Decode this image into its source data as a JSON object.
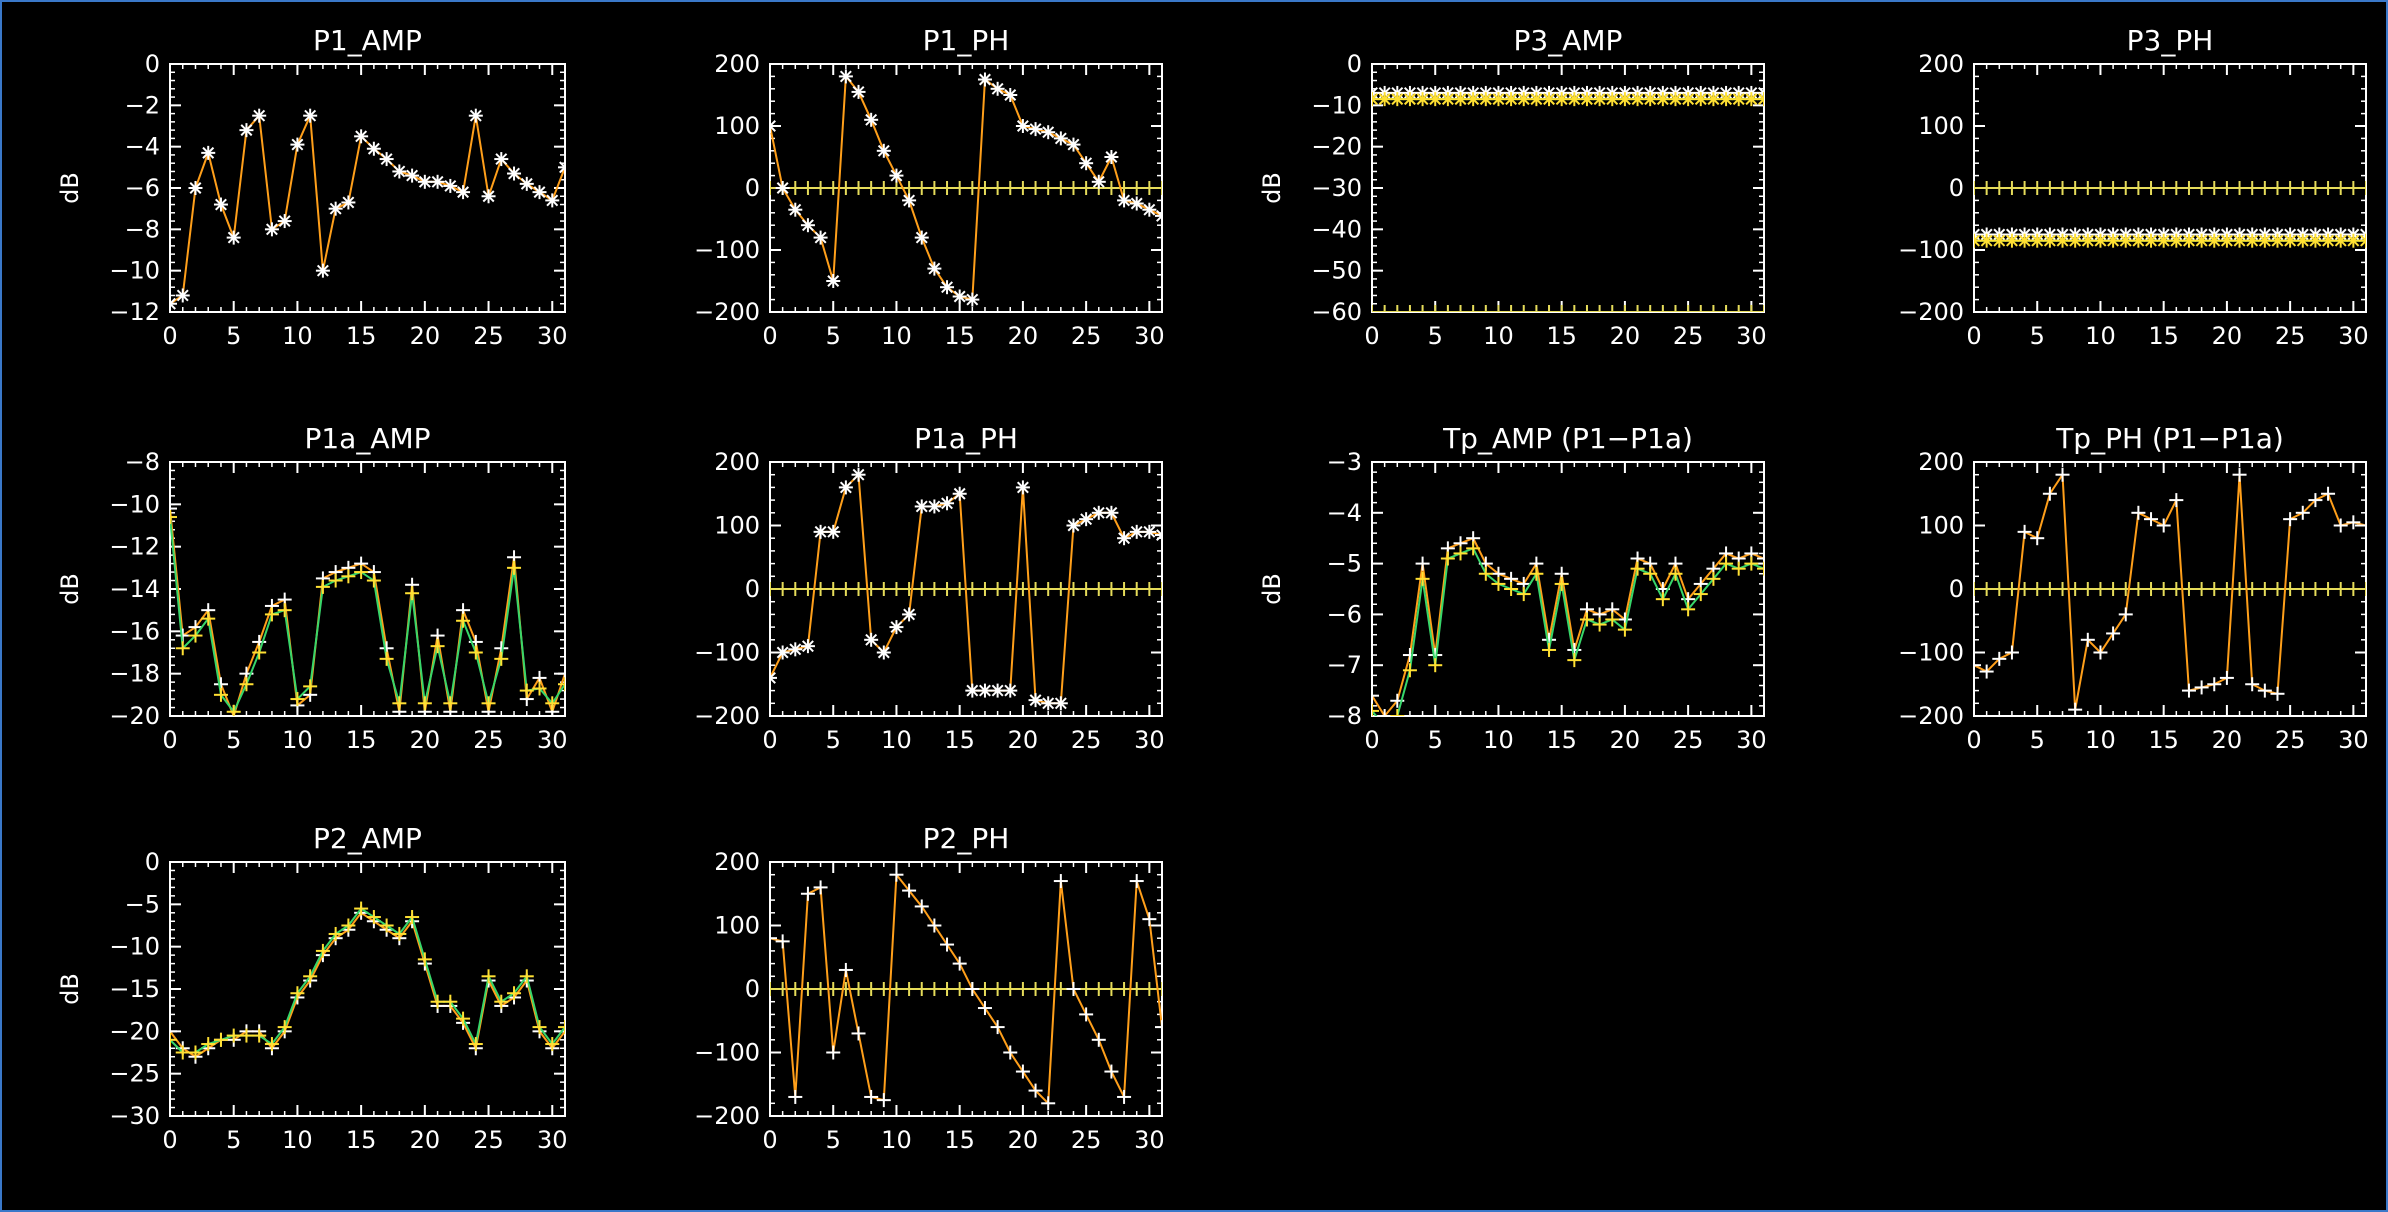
{
  "colors": {
    "background": "#000000",
    "axes": "#ffffff",
    "window_border": "#3a78c9",
    "zero_line_marker": "#e6dc5a",
    "series_palette": [
      "#ff3b30",
      "#ff9f1a",
      "#ffe033",
      "#37d66a",
      "#1ec8e8",
      "#2f4bff",
      "#7a22c9",
      "#ffffff"
    ]
  },
  "chart_data": [
    {
      "id": "p1_amp",
      "type": "line",
      "title": "P1_AMP",
      "xlabel": "",
      "ylabel": "dB",
      "xlim": [
        0,
        31
      ],
      "ylim": [
        -12,
        0
      ],
      "xticks": [
        0,
        5,
        10,
        15,
        20,
        25,
        30
      ],
      "yticks": [
        0,
        -2,
        -4,
        -6,
        -8,
        -10,
        -12
      ],
      "zero_line": false,
      "marker": "asterisk",
      "x": [
        0,
        1,
        2,
        3,
        4,
        5,
        6,
        7,
        8,
        9,
        10,
        11,
        12,
        13,
        14,
        15,
        16,
        17,
        18,
        19,
        20,
        21,
        22,
        23,
        24,
        25,
        26,
        27,
        28,
        29,
        30,
        31
      ],
      "series": [
        {
          "values": [
            -11.6,
            -11.2,
            -6.0,
            -4.3,
            -6.8,
            -8.4,
            -3.2,
            -2.5,
            -8.0,
            -7.6,
            -3.9,
            -2.5,
            -10.0,
            -7.0,
            -6.7,
            -3.5,
            -4.1,
            -4.6,
            -5.2,
            -5.4,
            -5.7,
            -5.7,
            -5.9,
            -6.2,
            -2.5,
            -6.4,
            -4.6,
            -5.3,
            -5.8,
            -6.2,
            -6.6,
            -5.0
          ]
        }
      ]
    },
    {
      "id": "p1_ph",
      "type": "line",
      "title": "P1_PH",
      "xlabel": "",
      "ylabel": "",
      "xlim": [
        0,
        31
      ],
      "ylim": [
        -200,
        200
      ],
      "xticks": [
        0,
        5,
        10,
        15,
        20,
        25,
        30
      ],
      "yticks": [
        200,
        100,
        0,
        -100,
        -200
      ],
      "zero_line": true,
      "marker": "asterisk",
      "x": [
        0,
        1,
        2,
        3,
        4,
        5,
        6,
        7,
        8,
        9,
        10,
        11,
        12,
        13,
        14,
        15,
        16,
        17,
        18,
        19,
        20,
        21,
        22,
        23,
        24,
        25,
        26,
        27,
        28,
        29,
        30,
        31
      ],
      "series": [
        {
          "values": [
            100,
            0,
            -35,
            -60,
            -80,
            -150,
            180,
            155,
            110,
            60,
            20,
            -20,
            -80,
            -130,
            -160,
            -175,
            -180,
            175,
            160,
            150,
            100,
            95,
            90,
            80,
            70,
            40,
            10,
            50,
            -20,
            -25,
            -35,
            -45
          ]
        }
      ]
    },
    {
      "id": "p3_amp",
      "type": "line",
      "title": "P3_AMP",
      "xlabel": "",
      "ylabel": "dB",
      "xlim": [
        0,
        31
      ],
      "ylim": [
        -60,
        0
      ],
      "xticks": [
        0,
        5,
        10,
        15,
        20,
        25,
        30
      ],
      "yticks": [
        0,
        -10,
        -20,
        -30,
        -40,
        -50,
        -60
      ],
      "zero_line": false,
      "zero_line_value": -60,
      "marker": "asterisk",
      "x": [
        0,
        1,
        2,
        3,
        4,
        5,
        6,
        7,
        8,
        9,
        10,
        11,
        12,
        13,
        14,
        15,
        16,
        17,
        18,
        19,
        20,
        21,
        22,
        23,
        24,
        25,
        26,
        27,
        28,
        29,
        30,
        31
      ],
      "series": [
        {
          "values": [
            -7,
            -7,
            -7,
            -7,
            -7,
            -7,
            -7,
            -7,
            -7,
            -7,
            -7,
            -7,
            -7,
            -7,
            -7,
            -7,
            -7,
            -7,
            -7,
            -7,
            -7,
            -7,
            -7,
            -7,
            -7,
            -7,
            -7,
            -7,
            -7,
            -7,
            -7,
            -7
          ]
        },
        {
          "values": [
            -8.5,
            -8.5,
            -8.5,
            -8.5,
            -8.5,
            -8.5,
            -8.5,
            -8.5,
            -8.5,
            -8.5,
            -8.5,
            -8.5,
            -8.5,
            -8.5,
            -8.5,
            -8.5,
            -8.5,
            -8.5,
            -8.5,
            -8.5,
            -8.5,
            -8.5,
            -8.5,
            -8.5,
            -8.5,
            -8.5,
            -8.5,
            -8.5,
            -8.5,
            -8.5,
            -8.5,
            -8.5
          ]
        }
      ]
    },
    {
      "id": "p3_ph",
      "type": "line",
      "title": "P3_PH",
      "xlabel": "",
      "ylabel": "",
      "xlim": [
        0,
        31
      ],
      "ylim": [
        -200,
        200
      ],
      "xticks": [
        0,
        5,
        10,
        15,
        20,
        25,
        30
      ],
      "yticks": [
        200,
        100,
        0,
        -100,
        -200
      ],
      "zero_line": true,
      "marker": "asterisk",
      "x": [
        0,
        1,
        2,
        3,
        4,
        5,
        6,
        7,
        8,
        9,
        10,
        11,
        12,
        13,
        14,
        15,
        16,
        17,
        18,
        19,
        20,
        21,
        22,
        23,
        24,
        25,
        26,
        27,
        28,
        29,
        30,
        31
      ],
      "series": [
        {
          "values": [
            -75,
            -75,
            -75,
            -75,
            -75,
            -75,
            -75,
            -75,
            -75,
            -75,
            -75,
            -75,
            -75,
            -75,
            -75,
            -75,
            -75,
            -75,
            -75,
            -75,
            -75,
            -75,
            -75,
            -75,
            -75,
            -75,
            -75,
            -75,
            -75,
            -75,
            -75,
            -75
          ]
        },
        {
          "values": [
            -85,
            -85,
            -85,
            -85,
            -85,
            -85,
            -85,
            -85,
            -85,
            -85,
            -85,
            -85,
            -85,
            -85,
            -85,
            -85,
            -85,
            -85,
            -85,
            -85,
            -85,
            -85,
            -85,
            -85,
            -85,
            -85,
            -85,
            -85,
            -85,
            -85,
            -85,
            -85
          ]
        }
      ]
    },
    {
      "id": "p1a_amp",
      "type": "line",
      "title": "P1a_AMP",
      "xlabel": "",
      "ylabel": "dB",
      "xlim": [
        0,
        31
      ],
      "ylim": [
        -20,
        -8
      ],
      "xticks": [
        0,
        5,
        10,
        15,
        20,
        25,
        30
      ],
      "yticks": [
        -8,
        -10,
        -12,
        -14,
        -16,
        -18,
        -20
      ],
      "zero_line": false,
      "marker": "plus",
      "x": [
        0,
        1,
        2,
        3,
        4,
        5,
        6,
        7,
        8,
        9,
        10,
        11,
        12,
        13,
        14,
        15,
        16,
        17,
        18,
        19,
        20,
        21,
        22,
        23,
        24,
        25,
        26,
        27,
        28,
        29,
        30,
        31
      ],
      "series": [
        {
          "values": [
            -10.2,
            -16.2,
            -15.8,
            -15.0,
            -18.5,
            -20.0,
            -18.0,
            -16.5,
            -14.8,
            -14.5,
            -19.5,
            -19.0,
            -13.5,
            -13.2,
            -13.0,
            -12.8,
            -13.2,
            -16.8,
            -19.8,
            -13.8,
            -19.8,
            -16.2,
            -19.8,
            -15.0,
            -16.5,
            -19.8,
            -16.8,
            -12.5,
            -19.2,
            -18.2,
            -19.8,
            -18.0
          ]
        },
        {
          "values": [
            -10.6,
            -16.8,
            -16.2,
            -15.4,
            -19.0,
            -19.8,
            -18.5,
            -17.0,
            -15.2,
            -15.0,
            -19.2,
            -18.6,
            -13.9,
            -13.6,
            -13.4,
            -13.2,
            -13.6,
            -17.3,
            -19.4,
            -14.2,
            -19.4,
            -16.7,
            -19.4,
            -15.5,
            -17.0,
            -19.4,
            -17.3,
            -13.0,
            -18.8,
            -18.7,
            -19.4,
            -18.5
          ]
        }
      ]
    },
    {
      "id": "p1a_ph",
      "type": "line",
      "title": "P1a_PH",
      "xlabel": "",
      "ylabel": "",
      "xlim": [
        0,
        31
      ],
      "ylim": [
        -200,
        200
      ],
      "xticks": [
        0,
        5,
        10,
        15,
        20,
        25,
        30
      ],
      "yticks": [
        200,
        100,
        0,
        -100,
        -200
      ],
      "zero_line": true,
      "marker": "asterisk",
      "x": [
        0,
        1,
        2,
        3,
        4,
        5,
        6,
        7,
        8,
        9,
        10,
        11,
        12,
        13,
        14,
        15,
        16,
        17,
        18,
        19,
        20,
        21,
        22,
        23,
        24,
        25,
        26,
        27,
        28,
        29,
        30,
        31
      ],
      "series": [
        {
          "values": [
            -140,
            -100,
            -95,
            -90,
            90,
            90,
            160,
            180,
            -80,
            -100,
            -60,
            -40,
            130,
            130,
            135,
            150,
            -160,
            -160,
            -160,
            -160,
            160,
            -175,
            -180,
            -180,
            100,
            110,
            120,
            120,
            80,
            90,
            90,
            85
          ]
        }
      ]
    },
    {
      "id": "tp_amp",
      "type": "line",
      "title": "Tp_AMP (P1−P1a)",
      "xlabel": "",
      "ylabel": "dB",
      "xlim": [
        0,
        31
      ],
      "ylim": [
        -8,
        -3
      ],
      "xticks": [
        0,
        5,
        10,
        15,
        20,
        25,
        30
      ],
      "yticks": [
        -3,
        -4,
        -5,
        -6,
        -7,
        -8
      ],
      "zero_line": false,
      "marker": "plus",
      "x": [
        0,
        1,
        2,
        3,
        4,
        5,
        6,
        7,
        8,
        9,
        10,
        11,
        12,
        13,
        14,
        15,
        16,
        17,
        18,
        19,
        20,
        21,
        22,
        23,
        24,
        25,
        26,
        27,
        28,
        29,
        30,
        31
      ],
      "series": [
        {
          "values": [
            -7.6,
            -8.0,
            -7.7,
            -6.8,
            -5.0,
            -6.8,
            -4.7,
            -4.6,
            -4.5,
            -5.0,
            -5.2,
            -5.3,
            -5.4,
            -5.0,
            -6.5,
            -5.2,
            -6.7,
            -5.9,
            -6.0,
            -5.9,
            -6.1,
            -4.9,
            -5.0,
            -5.5,
            -5.0,
            -5.7,
            -5.4,
            -5.1,
            -4.8,
            -4.9,
            -4.8,
            -4.9
          ]
        },
        {
          "values": [
            -7.9,
            -8.2,
            -8.0,
            -7.1,
            -5.3,
            -7.0,
            -4.9,
            -4.8,
            -4.7,
            -5.2,
            -5.4,
            -5.5,
            -5.6,
            -5.2,
            -6.7,
            -5.4,
            -6.9,
            -6.1,
            -6.2,
            -6.1,
            -6.3,
            -5.1,
            -5.2,
            -5.7,
            -5.2,
            -5.9,
            -5.6,
            -5.3,
            -5.0,
            -5.1,
            -5.0,
            -5.1
          ]
        }
      ]
    },
    {
      "id": "tp_ph",
      "type": "line",
      "title": "Tp_PH (P1−P1a)",
      "xlabel": "",
      "ylabel": "",
      "xlim": [
        0,
        31
      ],
      "ylim": [
        -200,
        200
      ],
      "xticks": [
        0,
        5,
        10,
        15,
        20,
        25,
        30
      ],
      "yticks": [
        200,
        100,
        0,
        -100,
        -200
      ],
      "zero_line": true,
      "marker": "plus",
      "x": [
        0,
        1,
        2,
        3,
        4,
        5,
        6,
        7,
        8,
        9,
        10,
        11,
        12,
        13,
        14,
        15,
        16,
        17,
        18,
        19,
        20,
        21,
        22,
        23,
        24,
        25,
        26,
        27,
        28,
        29,
        30,
        31
      ],
      "series": [
        {
          "values": [
            -120,
            -130,
            -110,
            -100,
            90,
            80,
            150,
            180,
            -190,
            -80,
            -100,
            -70,
            -40,
            120,
            110,
            100,
            140,
            -160,
            -155,
            -150,
            -140,
            180,
            -150,
            -160,
            -165,
            110,
            120,
            140,
            150,
            100,
            105,
            100
          ]
        }
      ]
    },
    {
      "id": "p2_amp",
      "type": "line",
      "title": "P2_AMP",
      "xlabel": "",
      "ylabel": "dB",
      "xlim": [
        0,
        31
      ],
      "ylim": [
        -30,
        0
      ],
      "xticks": [
        0,
        5,
        10,
        15,
        20,
        25,
        30
      ],
      "yticks": [
        0,
        -5,
        -10,
        -15,
        -20,
        -25,
        -30
      ],
      "zero_line": false,
      "marker": "plus",
      "x": [
        0,
        1,
        2,
        3,
        4,
        5,
        6,
        7,
        8,
        9,
        10,
        11,
        12,
        13,
        14,
        15,
        16,
        17,
        18,
        19,
        20,
        21,
        22,
        23,
        24,
        25,
        26,
        27,
        28,
        29,
        30,
        31
      ],
      "series": [
        {
          "values": [
            -20,
            -22,
            -23,
            -22,
            -21,
            -21,
            -20,
            -20,
            -22,
            -20,
            -16,
            -14,
            -11,
            -9,
            -8,
            -6,
            -7,
            -8,
            -9,
            -7,
            -12,
            -17,
            -17,
            -19,
            -22,
            -14,
            -17,
            -16,
            -14,
            -20,
            -22,
            -20
          ]
        },
        {
          "values": [
            -21,
            -22.5,
            -22.5,
            -21.5,
            -21,
            -20.5,
            -20.5,
            -20.5,
            -21.5,
            -19.5,
            -15.5,
            -13.5,
            -10.5,
            -8.5,
            -7.5,
            -5.5,
            -6.5,
            -7.5,
            -8.5,
            -6.5,
            -11.5,
            -16.5,
            -16.5,
            -18.5,
            -21.5,
            -13.5,
            -16.5,
            -15.5,
            -13.5,
            -19.5,
            -21.5,
            -19.5
          ]
        }
      ]
    },
    {
      "id": "p2_ph",
      "type": "line",
      "title": "P2_PH",
      "xlabel": "",
      "ylabel": "",
      "xlim": [
        0,
        31
      ],
      "ylim": [
        -200,
        200
      ],
      "xticks": [
        0,
        5,
        10,
        15,
        20,
        25,
        30
      ],
      "yticks": [
        200,
        100,
        0,
        -100,
        -200
      ],
      "zero_line": true,
      "marker": "plus",
      "x": [
        0,
        1,
        2,
        3,
        4,
        5,
        6,
        7,
        8,
        9,
        10,
        11,
        12,
        13,
        14,
        15,
        16,
        17,
        18,
        19,
        20,
        21,
        22,
        23,
        24,
        25,
        26,
        27,
        28,
        29,
        30,
        31
      ],
      "series": [
        {
          "values": [
            80,
            75,
            -170,
            150,
            160,
            -100,
            30,
            -70,
            -170,
            -175,
            180,
            155,
            130,
            100,
            70,
            40,
            0,
            -30,
            -60,
            -100,
            -130,
            -160,
            -180,
            170,
            0,
            -40,
            -80,
            -130,
            -170,
            170,
            110,
            -60
          ]
        }
      ]
    }
  ]
}
